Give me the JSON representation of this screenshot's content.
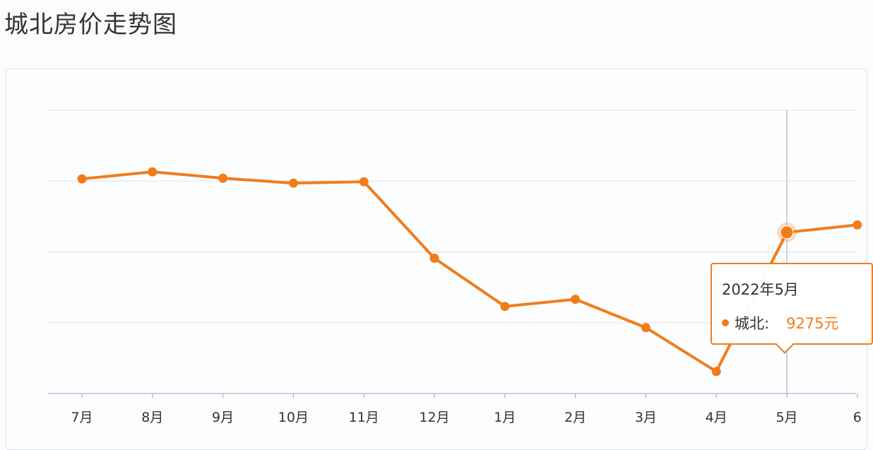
{
  "page": {
    "title": "城北房价走势图"
  },
  "colors": {
    "series": "#f07d1a",
    "grid": "#dde2ea",
    "axis": "#9aa3b2",
    "crosshair": "#a7acbf"
  },
  "chart_data": {
    "type": "line",
    "categories": [
      "7月",
      "8月",
      "9月",
      "10月",
      "11月",
      "12月",
      "1月",
      "2月",
      "3月",
      "4月",
      "5月",
      "6"
    ],
    "series": [
      {
        "name": "城北",
        "values": [
          10030,
          10130,
          10040,
          9970,
          9990,
          8910,
          8230,
          8330,
          7930,
          7310,
          9275,
          9380
        ]
      }
    ],
    "grid": true,
    "highlight_index": 10
  },
  "tooltip": {
    "title": "2022年5月",
    "series_name": "城北:",
    "value": "9275元"
  }
}
